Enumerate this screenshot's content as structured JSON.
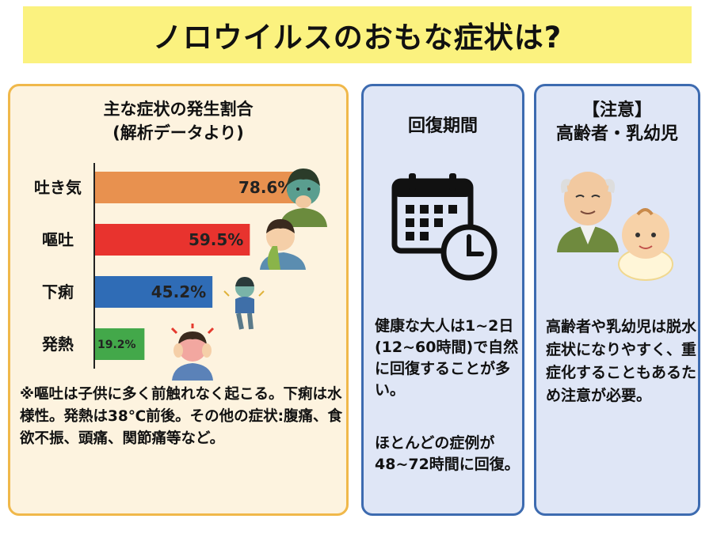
{
  "header": {
    "title": "ノロウイルスのおもな症状は?"
  },
  "left_panel": {
    "chart_title_line1": "主な症状の発生割合",
    "chart_title_line2": "(解析データより)",
    "note": "※嘔吐は子供に多く前触れなく起こる。下痢は水様性。発熱は38℃前後。その他の症状:腹痛、食欲不振、頭痛、関節痛等など。"
  },
  "chart_data": {
    "type": "bar",
    "orientation": "horizontal",
    "title": "主な症状の発生割合",
    "subtitle": "(解析データより)",
    "categories": [
      "吐き気",
      "嘔吐",
      "下痢",
      "発熱"
    ],
    "values": [
      78.6,
      59.5,
      45.2,
      19.2
    ],
    "value_labels": [
      "78.6%",
      "59.5%",
      "45.2%",
      "19.2%"
    ],
    "unit": "%",
    "colors": [
      "#e8914f",
      "#e8332e",
      "#2f6cb6",
      "#43a84a"
    ],
    "xlim": [
      0,
      100
    ],
    "grid": false,
    "legend": "none"
  },
  "middle_panel": {
    "title": "回復期間",
    "icon": "calendar-clock-icon",
    "text1": "健康な大人は1~2日(12~60時間)で自然に回復することが多い。",
    "text2": "ほとんどの症例が48~72時間に回復。"
  },
  "right_panel": {
    "title_line1": "【注意】",
    "title_line2": "高齢者・乳幼児",
    "text": "高齢者や乳幼児は脱水症状になりやすく、重症化することもあるため注意が必要。"
  },
  "colors": {
    "title_bg": "#fbf27f",
    "left_panel_bg": "#fdf3df",
    "left_panel_border": "#f0b84a",
    "blue_panel_bg": "#dfe6f6",
    "blue_panel_border": "#3d6bb0"
  }
}
